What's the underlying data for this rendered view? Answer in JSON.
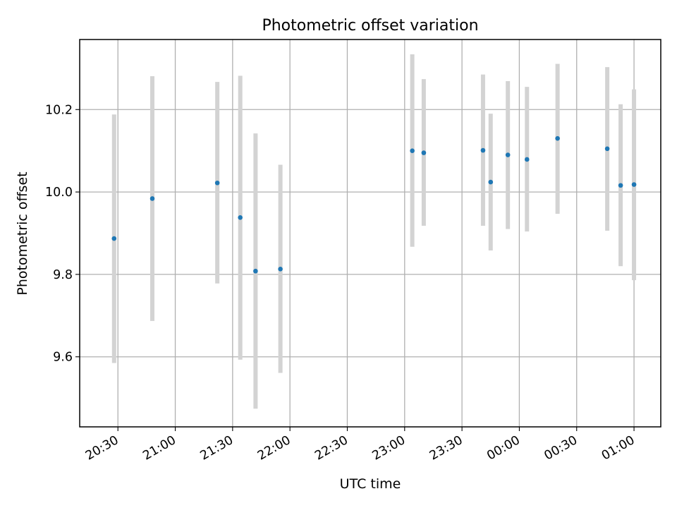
{
  "chart_data": {
    "type": "scatter",
    "title": "Photometric offset variation",
    "xlabel": "UTC time",
    "ylabel": "Photometric offset",
    "x_ticks": [
      "20:30",
      "21:00",
      "21:30",
      "22:00",
      "22:30",
      "23:00",
      "23:30",
      "00:00",
      "00:30",
      "01:00"
    ],
    "y_ticks": [
      "9.6",
      "9.8",
      "10.0",
      "10.2"
    ],
    "xlim": [
      "20:10",
      "01:14"
    ],
    "ylim": [
      9.43,
      10.37
    ],
    "grid": true,
    "colors": {
      "point": "#1f77b4",
      "errorbar": "#d3d3d3"
    },
    "points": [
      {
        "x": "20:28",
        "y": 9.887,
        "yerr_low": 9.585,
        "yerr_high": 10.188
      },
      {
        "x": "20:48",
        "y": 9.984,
        "yerr_low": 9.687,
        "yerr_high": 10.281
      },
      {
        "x": "21:22",
        "y": 10.022,
        "yerr_low": 9.778,
        "yerr_high": 10.267
      },
      {
        "x": "21:34",
        "y": 9.938,
        "yerr_low": 9.593,
        "yerr_high": 10.282
      },
      {
        "x": "21:42",
        "y": 9.808,
        "yerr_low": 9.474,
        "yerr_high": 10.142
      },
      {
        "x": "21:55",
        "y": 9.813,
        "yerr_low": 9.561,
        "yerr_high": 10.066
      },
      {
        "x": "23:04",
        "y": 10.1,
        "yerr_low": 9.867,
        "yerr_high": 10.334
      },
      {
        "x": "23:10",
        "y": 10.095,
        "yerr_low": 9.918,
        "yerr_high": 10.274
      },
      {
        "x": "23:41",
        "y": 10.101,
        "yerr_low": 9.918,
        "yerr_high": 10.285
      },
      {
        "x": "23:45",
        "y": 10.024,
        "yerr_low": 9.858,
        "yerr_high": 10.19
      },
      {
        "x": "23:54",
        "y": 10.09,
        "yerr_low": 9.91,
        "yerr_high": 10.269
      },
      {
        "x": "00:04",
        "y": 10.079,
        "yerr_low": 9.904,
        "yerr_high": 10.255
      },
      {
        "x": "00:20",
        "y": 10.13,
        "yerr_low": 9.947,
        "yerr_high": 10.311
      },
      {
        "x": "00:46",
        "y": 10.105,
        "yerr_low": 9.906,
        "yerr_high": 10.303
      },
      {
        "x": "00:53",
        "y": 10.016,
        "yerr_low": 9.82,
        "yerr_high": 10.213
      },
      {
        "x": "01:00",
        "y": 10.018,
        "yerr_low": 9.786,
        "yerr_high": 10.249
      }
    ]
  }
}
